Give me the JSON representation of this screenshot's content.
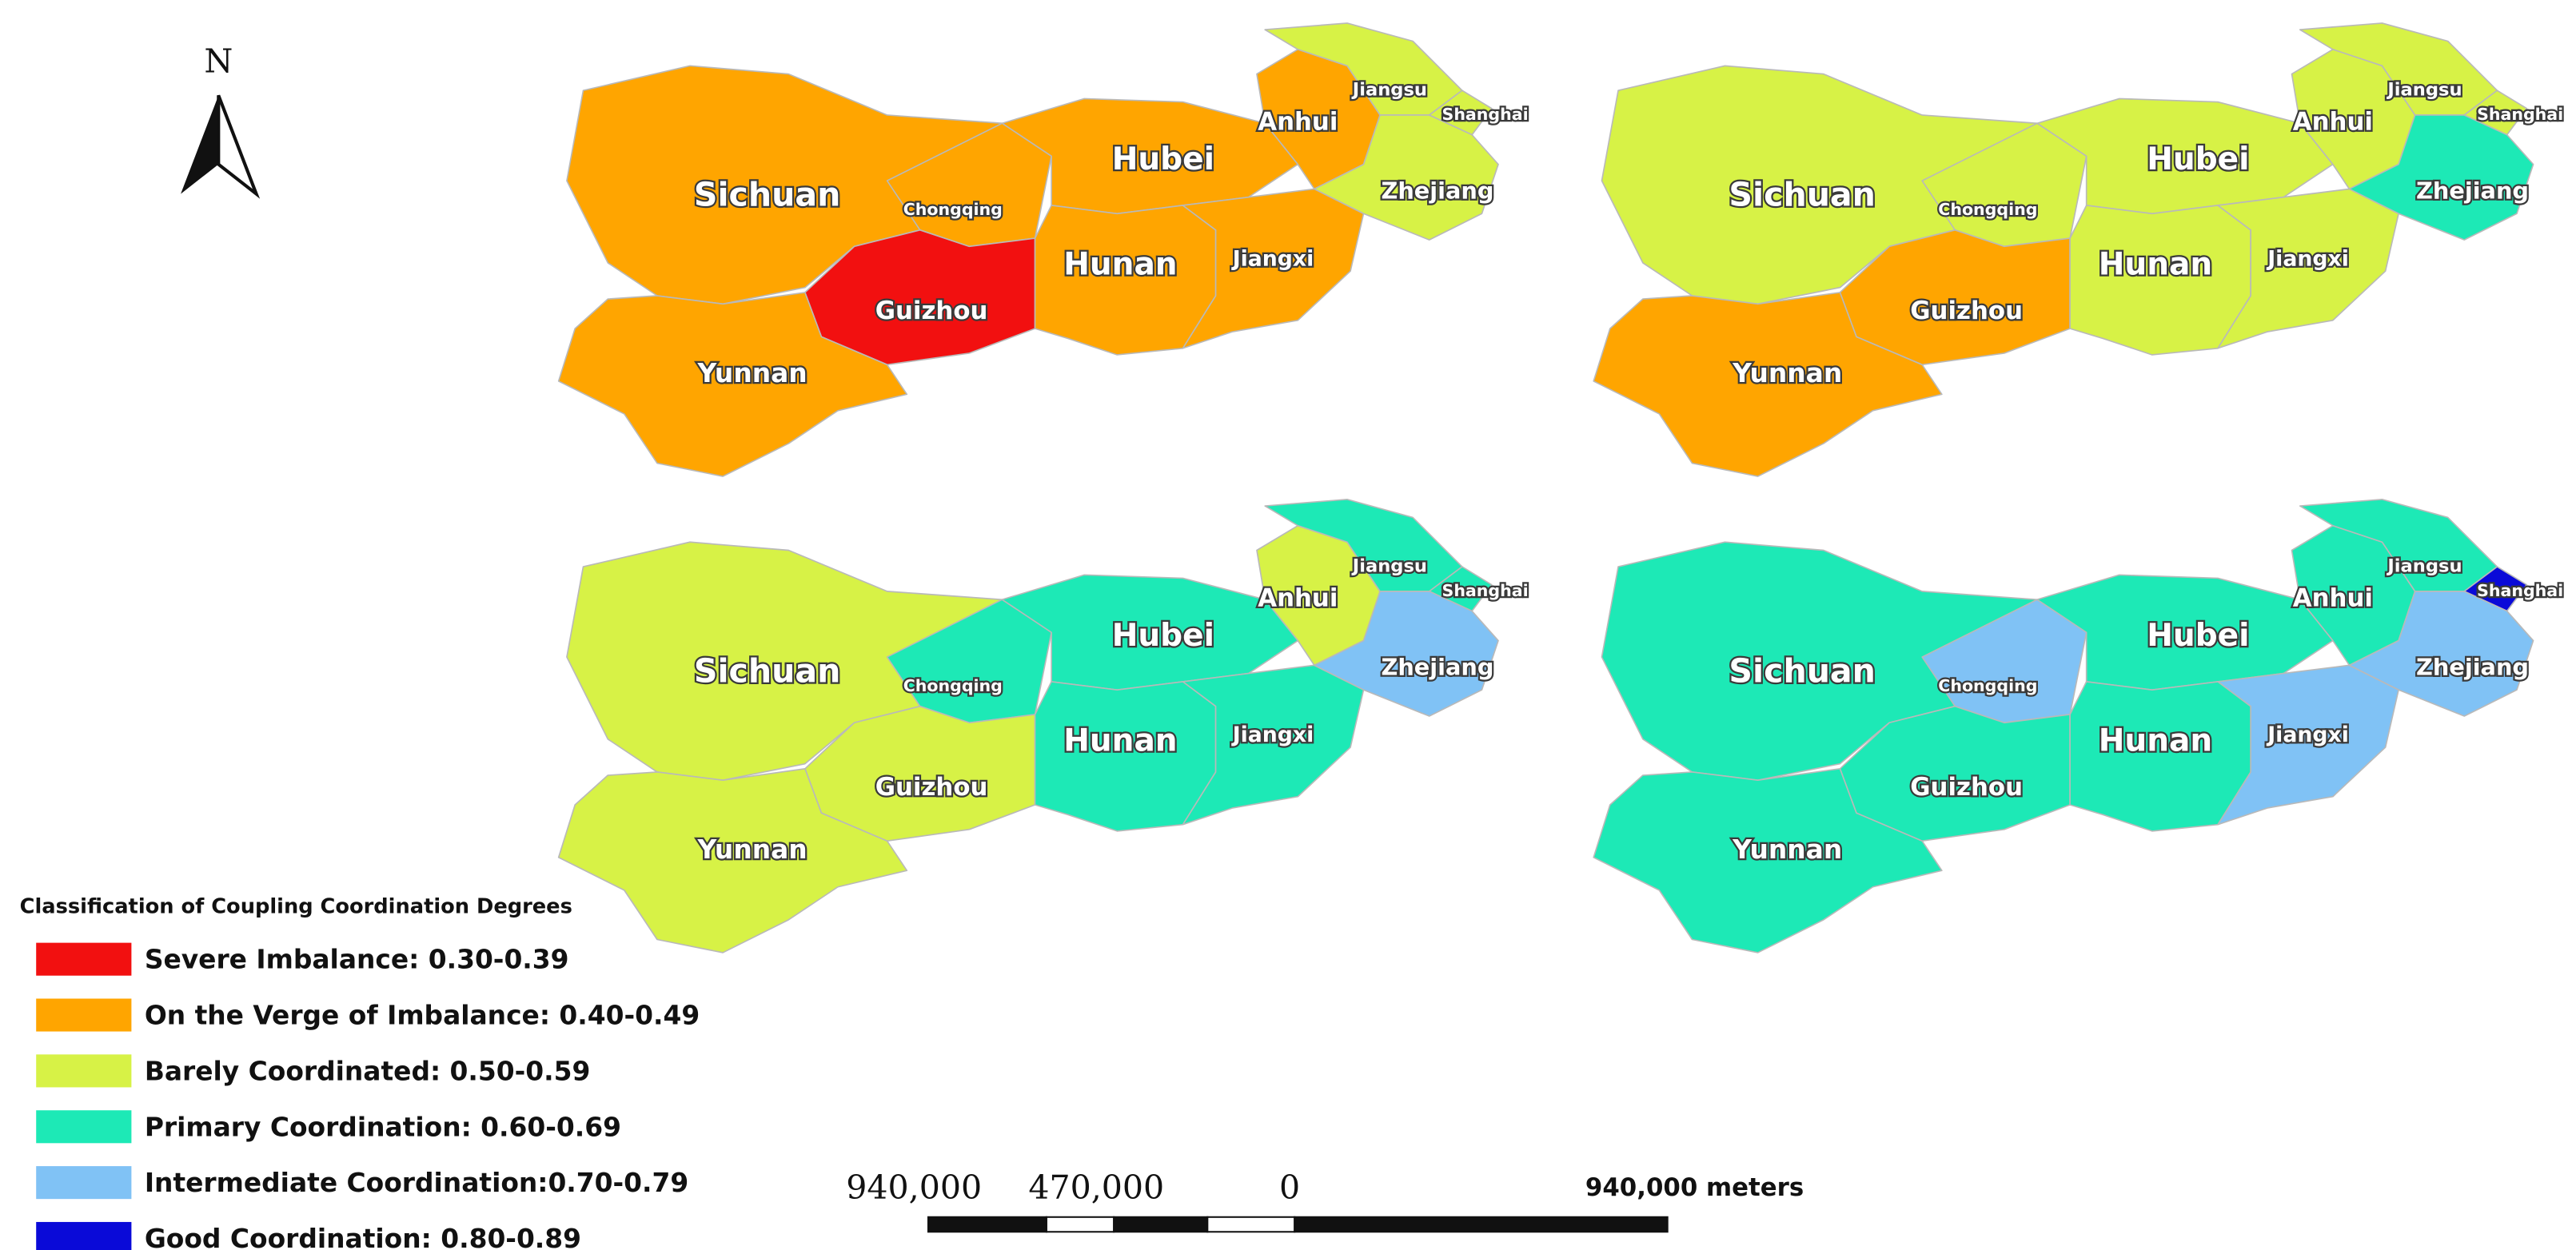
{
  "north": "N",
  "maps": [
    {
      "provinces": [
        {
          "name": "Sichuan",
          "color": "#ffa500"
        },
        {
          "name": "Chongqing",
          "color": "#ffa500"
        },
        {
          "name": "Guizhou",
          "color": "#f21010"
        },
        {
          "name": "Yunnan",
          "color": "#ffa500"
        },
        {
          "name": "Hubei",
          "color": "#ffa500"
        },
        {
          "name": "Hunan",
          "color": "#ffa500"
        },
        {
          "name": "Jiangxi",
          "color": "#ffa500"
        },
        {
          "name": "Anhui",
          "color": "#ffa500"
        },
        {
          "name": "Jiangsu",
          "color": "#d7f246"
        },
        {
          "name": "Shanghai",
          "color": "#d7f246"
        },
        {
          "name": "Zhejiang",
          "color": "#d7f246"
        }
      ]
    },
    {
      "provinces": [
        {
          "name": "Sichuan",
          "color": "#d7f246"
        },
        {
          "name": "Chongqing",
          "color": "#d7f246"
        },
        {
          "name": "Guizhou",
          "color": "#ffa500"
        },
        {
          "name": "Yunnan",
          "color": "#ffa500"
        },
        {
          "name": "Hubei",
          "color": "#d7f246"
        },
        {
          "name": "Hunan",
          "color": "#d7f246"
        },
        {
          "name": "Jiangxi",
          "color": "#d7f246"
        },
        {
          "name": "Anhui",
          "color": "#d7f246"
        },
        {
          "name": "Jiangsu",
          "color": "#d7f246"
        },
        {
          "name": "Shanghai",
          "color": "#d7f246"
        },
        {
          "name": "Zhejiang",
          "color": "#1de9b6"
        }
      ]
    },
    {
      "provinces": [
        {
          "name": "Sichuan",
          "color": "#d7f246"
        },
        {
          "name": "Chongqing",
          "color": "#1de9b6"
        },
        {
          "name": "Guizhou",
          "color": "#d7f246"
        },
        {
          "name": "Yunnan",
          "color": "#d7f246"
        },
        {
          "name": "Hubei",
          "color": "#1de9b6"
        },
        {
          "name": "Hunan",
          "color": "#1de9b6"
        },
        {
          "name": "Jiangxi",
          "color": "#1de9b6"
        },
        {
          "name": "Anhui",
          "color": "#d7f246"
        },
        {
          "name": "Jiangsu",
          "color": "#1de9b6"
        },
        {
          "name": "Shanghai",
          "color": "#1de9b6"
        },
        {
          "name": "Zhejiang",
          "color": "#80c2f5"
        }
      ]
    },
    {
      "provinces": [
        {
          "name": "Sichuan",
          "color": "#1de9b6"
        },
        {
          "name": "Chongqing",
          "color": "#80c2f5"
        },
        {
          "name": "Guizhou",
          "color": "#1de9b6"
        },
        {
          "name": "Yunnan",
          "color": "#1de9b6"
        },
        {
          "name": "Hubei",
          "color": "#1de9b6"
        },
        {
          "name": "Hunan",
          "color": "#1de9b6"
        },
        {
          "name": "Jiangxi",
          "color": "#80c2f5"
        },
        {
          "name": "Anhui",
          "color": "#1de9b6"
        },
        {
          "name": "Jiangsu",
          "color": "#1de9b6"
        },
        {
          "name": "Shanghai",
          "color": "#0a0ad8"
        },
        {
          "name": "Zhejiang",
          "color": "#80c2f5"
        }
      ]
    }
  ],
  "legend": {
    "title": "Classification of Coupling Coordination Degrees",
    "items": [
      {
        "label": "Severe Imbalance: 0.30-0.39",
        "color": "#f21010"
      },
      {
        "label": "On the Verge of Imbalance: 0.40-0.49",
        "color": "#ffa500"
      },
      {
        "label": "Barely Coordinated: 0.50-0.59",
        "color": "#d7f246"
      },
      {
        "label": "Primary Coordination: 0.60-0.69",
        "color": "#1de9b6"
      },
      {
        "label": "Intermediate Coordination:0.70-0.79",
        "color": "#80c2f5"
      },
      {
        "label": " Good Coordination: 0.80-0.89",
        "color": "#0a0ad8"
      }
    ]
  },
  "scale_bar": {
    "labels": [
      "940,000",
      "470,000",
      "0"
    ],
    "unit": "940,000 meters"
  }
}
